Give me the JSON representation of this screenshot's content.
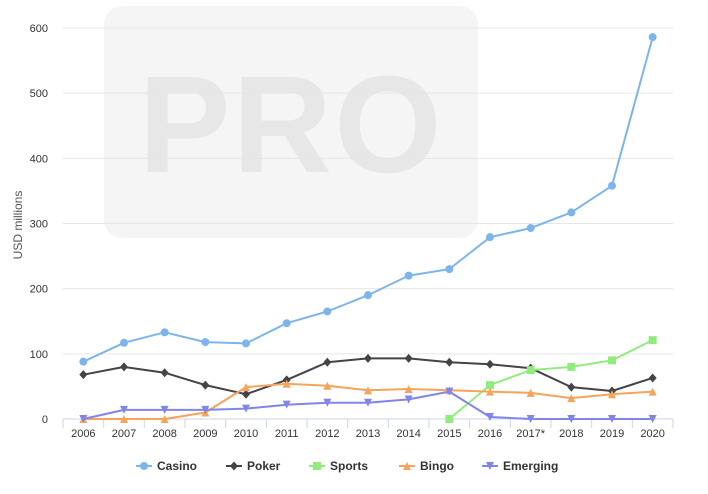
{
  "watermark": {
    "text": "PRO"
  },
  "chart_data": {
    "type": "line",
    "title": "",
    "xlabel": "",
    "ylabel": "USD millions",
    "ylim": [
      0,
      600
    ],
    "yticks": [
      0,
      100,
      200,
      300,
      400,
      500,
      600
    ],
    "categories": [
      "2006",
      "2007",
      "2008",
      "2009",
      "2010",
      "2011",
      "2012",
      "2013",
      "2014",
      "2015",
      "2016",
      "2017*",
      "2018",
      "2019",
      "2020"
    ],
    "grid": "horizontal",
    "legend": "bottom-center",
    "series": [
      {
        "name": "Casino",
        "color": "#7cb5ec",
        "marker": "circle",
        "values": [
          88,
          117,
          133,
          118,
          116,
          147,
          165,
          190,
          220,
          230,
          279,
          293,
          317,
          358,
          586
        ]
      },
      {
        "name": "Poker",
        "color": "#434348",
        "marker": "diamond",
        "values": [
          68,
          80,
          71,
          52,
          38,
          60,
          87,
          93,
          93,
          87,
          84,
          78,
          49,
          43,
          63
        ]
      },
      {
        "name": "Sports",
        "color": "#90ed7d",
        "marker": "square",
        "values": [
          null,
          null,
          null,
          null,
          null,
          null,
          null,
          null,
          null,
          0,
          52,
          75,
          80,
          90,
          121
        ]
      },
      {
        "name": "Bingo",
        "color": "#f7a35c",
        "marker": "triangle",
        "values": [
          0,
          0,
          0,
          10,
          49,
          54,
          51,
          44,
          46,
          44,
          42,
          40,
          32,
          38,
          42
        ]
      },
      {
        "name": "Emerging",
        "color": "#8085e9",
        "marker": "triangle-down",
        "values": [
          0,
          14,
          14,
          14,
          16,
          22,
          25,
          25,
          30,
          42,
          3,
          0,
          0,
          0,
          0
        ]
      }
    ]
  }
}
